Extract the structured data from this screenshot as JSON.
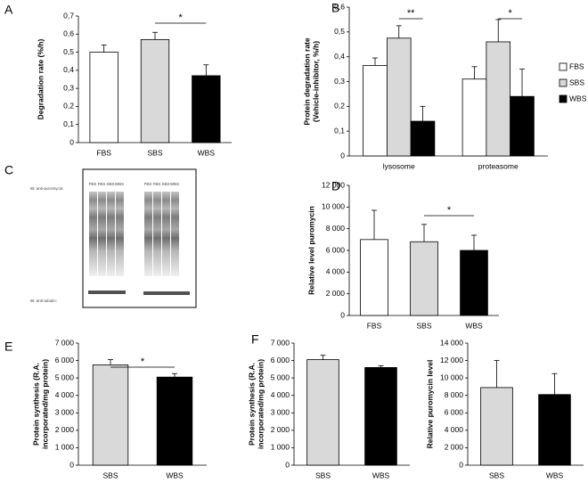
{
  "chart_data": [
    {
      "type": "bar",
      "panel": "A",
      "ylabel": "Degradation rate (%/h)",
      "categories": [
        "FBS",
        "SBS",
        "WBS"
      ],
      "values": [
        0.5,
        0.57,
        0.37
      ],
      "errors": [
        0.04,
        0.04,
        0.06
      ],
      "colors": [
        "#ffffff",
        "#d9d9d9",
        "#000000"
      ],
      "ylim": [
        0,
        0.7
      ],
      "yticks": [
        0,
        {
          "value": 0.1,
          "label": "0,1"
        },
        {
          "value": 0.2,
          "label": "0,2"
        },
        {
          "value": 0.3,
          "label": "0,3"
        },
        {
          "value": 0.4,
          "label": "0,4"
        },
        {
          "value": 0.5,
          "label": "0,5"
        },
        {
          "value": 0.6,
          "label": "0,6"
        },
        {
          "value": 0.7,
          "label": "0,7"
        }
      ],
      "annotations": [
        "*"
      ]
    },
    {
      "type": "bar",
      "panel": "B",
      "ylabel": [
        "Protein degradation rate",
        "(Vehicle-inhibitor, %/h)"
      ],
      "categories": [
        "lysosome",
        "proteasome"
      ],
      "series": [
        {
          "name": "FBS",
          "color": "#ffffff",
          "values": [
            0.365,
            0.31
          ],
          "errors": [
            0.03,
            0.05
          ]
        },
        {
          "name": "SBS",
          "color": "#d9d9d9",
          "values": [
            0.475,
            0.46
          ],
          "errors": [
            0.05,
            0.09
          ]
        },
        {
          "name": "WBS",
          "color": "#000000",
          "values": [
            0.14,
            0.24
          ],
          "errors": [
            0.06,
            0.11
          ]
        }
      ],
      "legend": "right",
      "ylim": [
        0,
        0.6
      ],
      "yticks": [
        0,
        {
          "value": 0.1,
          "label": "0,1"
        },
        {
          "value": 0.2,
          "label": "0,2"
        },
        {
          "value": 0.3,
          "label": "0,3"
        },
        {
          "value": 0.4,
          "label": "0,4"
        },
        {
          "value": 0.5,
          "label": "0,5"
        },
        {
          "value": 0.6,
          "label": "0,6"
        }
      ],
      "annotations": [
        "**",
        "*"
      ]
    },
    {
      "type": "bar",
      "panel": "D",
      "ylabel": "Relative level puromycin",
      "categories": [
        "FBS",
        "SBS",
        "WBS"
      ],
      "values": [
        7000,
        6800,
        6000
      ],
      "errors": [
        2700,
        1600,
        1400
      ],
      "colors": [
        "#ffffff",
        "#d9d9d9",
        "#000000"
      ],
      "ylim": [
        0,
        12000
      ],
      "yticks": [
        0,
        {
          "value": 2000,
          "label": "2 000"
        },
        {
          "value": 4000,
          "label": "4 000"
        },
        {
          "value": 6000,
          "label": "6 000"
        },
        {
          "value": 8000,
          "label": "8 000"
        },
        {
          "value": 10000,
          "label": "10 000"
        },
        {
          "value": 12000,
          "label": "12 000"
        }
      ],
      "annotations": [
        "*"
      ]
    },
    {
      "type": "bar",
      "panel": "E",
      "ylabel": [
        "Protein synthesis (R.A.",
        "incorporated/mg protein)"
      ],
      "categories": [
        "SBS",
        "WBS"
      ],
      "values": [
        5750,
        5050
      ],
      "errors": [
        300,
        200
      ],
      "colors": [
        "#d9d9d9",
        "#000000"
      ],
      "ylim": [
        0,
        7000
      ],
      "yticks": [
        0,
        {
          "value": 1000,
          "label": "1 000"
        },
        {
          "value": 2000,
          "label": "2 000"
        },
        {
          "value": 3000,
          "label": "3 000"
        },
        {
          "value": 4000,
          "label": "4 000"
        },
        {
          "value": 5000,
          "label": "5 000"
        },
        {
          "value": 6000,
          "label": "6 000"
        },
        {
          "value": 7000,
          "label": "7 000"
        }
      ],
      "annotations": [
        "*"
      ]
    },
    {
      "type": "bar",
      "panel": "F",
      "ylabel": [
        "Protein synthesis (R.A.",
        "incorporated/mg protein)"
      ],
      "categories": [
        "SBS",
        "WBS"
      ],
      "values": [
        6050,
        5600
      ],
      "errors": [
        250,
        100
      ],
      "colors": [
        "#d9d9d9",
        "#000000"
      ],
      "ylim": [
        0,
        7000
      ],
      "yticks": [
        0,
        {
          "value": 1000,
          "label": "1 000"
        },
        {
          "value": 2000,
          "label": "2 000"
        },
        {
          "value": 3000,
          "label": "3 000"
        },
        {
          "value": 4000,
          "label": "4 000"
        },
        {
          "value": 5000,
          "label": "5 000"
        },
        {
          "value": 6000,
          "label": "6 000"
        },
        {
          "value": 7000,
          "label": "7 000"
        }
      ]
    },
    {
      "type": "bar",
      "ylabel": "Relative puromycin level",
      "categories": [
        "SBS",
        "WBS"
      ],
      "values": [
        8900,
        8100
      ],
      "errors": [
        3100,
        2400
      ],
      "colors": [
        "#d9d9d9",
        "#000000"
      ],
      "ylim": [
        0,
        14000
      ],
      "yticks": [
        0,
        {
          "value": 2000,
          "label": "2 000"
        },
        {
          "value": 4000,
          "label": "4 000"
        },
        {
          "value": 6000,
          "label": "6 000"
        },
        {
          "value": 8000,
          "label": "8 000"
        },
        {
          "value": 10000,
          "label": "10 000"
        },
        {
          "value": 12000,
          "label": "12 000"
        },
        {
          "value": 14000,
          "label": "14 000"
        }
      ]
    }
  ],
  "blot": {
    "panel": "C",
    "lanes": [
      "FBS",
      "FBS",
      "SBS",
      "WBS",
      "FBS",
      "FBS",
      "SBS",
      "WBS"
    ],
    "labels": [
      "IB: anti-puromycin:",
      "IB: anti-tubulin:"
    ]
  }
}
